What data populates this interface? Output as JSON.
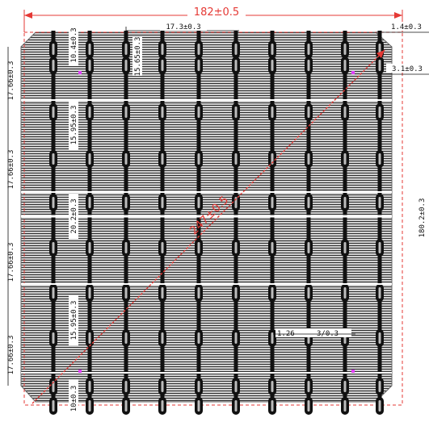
{
  "drawing": {
    "outer_width_dim": "182±0.5",
    "outer_height_dim": "180.2±0.3",
    "diagonal_dim": "247±0.5",
    "busbar_pitch_dim": "17.3±0.3",
    "edge_offset_dim": "1.4±0.3",
    "pad_offset_dim": "3.1±0.3",
    "left_pitch_dims": [
      "17.66±0.3",
      "17.66±0.3",
      "17.66±0.3",
      "17.66±0.3"
    ],
    "bottom_edge_dim": "10±0.3",
    "internal_dims": [
      "10.4±0.3",
      "15.65±0.3",
      "15.95±0.3",
      "20.2±0.3",
      "15.95±0.3",
      "10±0.3"
    ],
    "finger_dim": "1.26",
    "finger_dim_2": "3/0.3"
  },
  "colors": {
    "cell_fill": "#cfcfcf",
    "finger_line": "#3a3a3a",
    "busbar": "#111111",
    "dimension_red": "#e53935",
    "marker": "#e040fb"
  }
}
